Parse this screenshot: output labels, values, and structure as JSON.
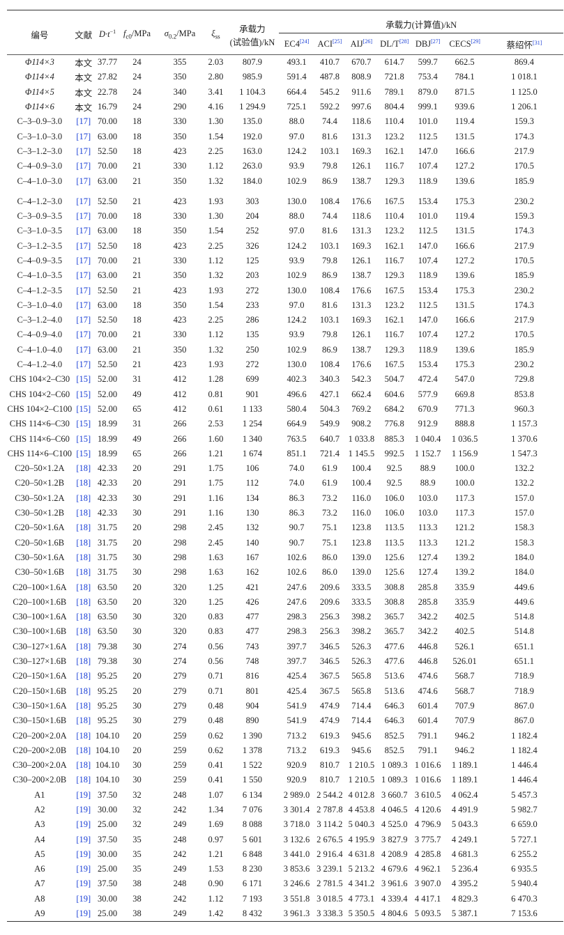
{
  "header": {
    "id": "编号",
    "source": "文献",
    "dt": "D·t",
    "dt_sup": "−1",
    "fc0": "f",
    "fc0_sub": "c0",
    "fc0_unit": "/MPa",
    "sigma": "σ",
    "sigma_sub": "0.2",
    "sigma_unit": "/MPa",
    "xi": "ξ",
    "xi_sub": "ss",
    "test_line1": "承载力",
    "test_line2": "(试验值)/kN",
    "calc_group": "承载力(计算值)/kN",
    "methods": [
      {
        "label": "EC4",
        "ref": "[24]"
      },
      {
        "label": "ACI",
        "ref": "[25]"
      },
      {
        "label": "AIJ",
        "ref": "[26]"
      },
      {
        "label": "DL/T",
        "ref": "[28]"
      },
      {
        "label": "DBJ",
        "ref": "[27]"
      },
      {
        "label": "CECS",
        "ref": "[29]"
      },
      {
        "label": "蔡绍怀",
        "ref": "[31]"
      }
    ]
  },
  "colors": {
    "ref_link": "#1a3fd6"
  },
  "rows": [
    [
      "Φ114×3",
      "本文",
      "37.77",
      "24",
      "355",
      "2.03",
      "807.9",
      "493.1",
      "410.7",
      "670.7",
      "614.7",
      "599.7",
      "662.5",
      "869.4"
    ],
    [
      "Φ114×4",
      "本文",
      "27.82",
      "24",
      "350",
      "2.80",
      "985.9",
      "591.4",
      "487.8",
      "808.9",
      "721.8",
      "753.4",
      "784.1",
      "1 018.1"
    ],
    [
      "Φ114×5",
      "本文",
      "22.78",
      "24",
      "340",
      "3.41",
      "1 104.3",
      "664.4",
      "545.2",
      "911.6",
      "789.1",
      "879.0",
      "871.5",
      "1 125.0"
    ],
    [
      "Φ114×6",
      "本文",
      "16.79",
      "24",
      "290",
      "4.16",
      "1 294.9",
      "725.1",
      "592.2",
      "997.6",
      "804.4",
      "999.1",
      "939.6",
      "1 206.1"
    ],
    [
      "C–3–0.9–3.0",
      "[17]",
      "70.00",
      "18",
      "330",
      "1.30",
      "135.0",
      "88.0",
      "74.4",
      "118.6",
      "110.4",
      "101.0",
      "119.4",
      "159.3"
    ],
    [
      "C–3–1.0–3.0",
      "[17]",
      "63.00",
      "18",
      "350",
      "1.54",
      "192.0",
      "97.0",
      "81.6",
      "131.3",
      "123.2",
      "112.5",
      "131.5",
      "174.3"
    ],
    [
      "C–3–1.2–3.0",
      "[17]",
      "52.50",
      "18",
      "423",
      "2.25",
      "163.0",
      "124.2",
      "103.1",
      "169.3",
      "162.1",
      "147.0",
      "166.6",
      "217.9"
    ],
    [
      "C–4–0.9–3.0",
      "[17]",
      "70.00",
      "21",
      "330",
      "1.12",
      "263.0",
      "93.9",
      "79.8",
      "126.1",
      "116.7",
      "107.4",
      "127.2",
      "170.5"
    ],
    [
      "C–4–1.0–3.0",
      "[17]",
      "63.00",
      "21",
      "350",
      "1.32",
      "184.0",
      "102.9",
      "86.9",
      "138.7",
      "129.3",
      "118.9",
      "139.6",
      "185.9"
    ],
    [
      "C–4–1.2–3.0",
      "[17]",
      "52.50",
      "21",
      "423",
      "1.93",
      "303",
      "130.0",
      "108.4",
      "176.6",
      "167.5",
      "153.4",
      "175.3",
      "230.2"
    ],
    [
      "C–3–0.9–3.5",
      "[17]",
      "70.00",
      "18",
      "330",
      "1.30",
      "204",
      "88.0",
      "74.4",
      "118.6",
      "110.4",
      "101.0",
      "119.4",
      "159.3"
    ],
    [
      "C–3–1.0–3.5",
      "[17]",
      "63.00",
      "18",
      "350",
      "1.54",
      "252",
      "97.0",
      "81.6",
      "131.3",
      "123.2",
      "112.5",
      "131.5",
      "174.3"
    ],
    [
      "C–3–1.2–3.5",
      "[17]",
      "52.50",
      "18",
      "423",
      "2.25",
      "326",
      "124.2",
      "103.1",
      "169.3",
      "162.1",
      "147.0",
      "166.6",
      "217.9"
    ],
    [
      "C–4–0.9–3.5",
      "[17]",
      "70.00",
      "21",
      "330",
      "1.12",
      "125",
      "93.9",
      "79.8",
      "126.1",
      "116.7",
      "107.4",
      "127.2",
      "170.5"
    ],
    [
      "C–4–1.0–3.5",
      "[17]",
      "63.00",
      "21",
      "350",
      "1.32",
      "203",
      "102.9",
      "86.9",
      "138.7",
      "129.3",
      "118.9",
      "139.6",
      "185.9"
    ],
    [
      "C–4–1.2–3.5",
      "[17]",
      "52.50",
      "21",
      "423",
      "1.93",
      "272",
      "130.0",
      "108.4",
      "176.6",
      "167.5",
      "153.4",
      "175.3",
      "230.2"
    ],
    [
      "C–3–1.0–4.0",
      "[17]",
      "63.00",
      "18",
      "350",
      "1.54",
      "233",
      "97.0",
      "81.6",
      "131.3",
      "123.2",
      "112.5",
      "131.5",
      "174.3"
    ],
    [
      "C–3–1.2–4.0",
      "[17]",
      "52.50",
      "18",
      "423",
      "2.25",
      "286",
      "124.2",
      "103.1",
      "169.3",
      "162.1",
      "147.0",
      "166.6",
      "217.9"
    ],
    [
      "C–4–0.9–4.0",
      "[17]",
      "70.00",
      "21",
      "330",
      "1.12",
      "135",
      "93.9",
      "79.8",
      "126.1",
      "116.7",
      "107.4",
      "127.2",
      "170.5"
    ],
    [
      "C–4–1.0–4.0",
      "[17]",
      "63.00",
      "21",
      "350",
      "1.32",
      "250",
      "102.9",
      "86.9",
      "138.7",
      "129.3",
      "118.9",
      "139.6",
      "185.9"
    ],
    [
      "C–4–1.2–4.0",
      "[17]",
      "52.50",
      "21",
      "423",
      "1.93",
      "272",
      "130.0",
      "108.4",
      "176.6",
      "167.5",
      "153.4",
      "175.3",
      "230.2"
    ],
    [
      "CHS 104×2–C30",
      "[15]",
      "52.00",
      "31",
      "412",
      "1.28",
      "699",
      "402.3",
      "340.3",
      "542.3",
      "504.7",
      "472.4",
      "547.0",
      "729.8"
    ],
    [
      "CHS 104×2–C60",
      "[15]",
      "52.00",
      "49",
      "412",
      "0.81",
      "901",
      "496.6",
      "427.1",
      "662.4",
      "604.6",
      "577.9",
      "669.8",
      "853.8"
    ],
    [
      "CHS 104×2–C100",
      "[15]",
      "52.00",
      "65",
      "412",
      "0.61",
      "1 133",
      "580.4",
      "504.3",
      "769.2",
      "684.2",
      "670.9",
      "771.3",
      "960.3"
    ],
    [
      "CHS 114×6–C30",
      "[15]",
      "18.99",
      "31",
      "266",
      "2.53",
      "1 254",
      "664.9",
      "549.9",
      "908.2",
      "776.8",
      "912.9",
      "888.8",
      "1 157.3"
    ],
    [
      "CHS 114×6–C60",
      "[15]",
      "18.99",
      "49",
      "266",
      "1.60",
      "1 340",
      "763.5",
      "640.7",
      "1 033.8",
      "885.3",
      "1 040.4",
      "1 036.5",
      "1 370.6"
    ],
    [
      "CHS 114×6–C100",
      "[15]",
      "18.99",
      "65",
      "266",
      "1.21",
      "1 674",
      "851.1",
      "721.4",
      "1 145.5",
      "992.5",
      "1 152.7",
      "1 156.9",
      "1 547.3"
    ],
    [
      "C20–50×1.2A",
      "[18]",
      "42.33",
      "20",
      "291",
      "1.75",
      "106",
      "74.0",
      "61.9",
      "100.4",
      "92.5",
      "88.9",
      "100.0",
      "132.2"
    ],
    [
      "C20–50×1.2B",
      "[18]",
      "42.33",
      "20",
      "291",
      "1.75",
      "112",
      "74.0",
      "61.9",
      "100.4",
      "92.5",
      "88.9",
      "100.0",
      "132.2"
    ],
    [
      "C30–50×1.2A",
      "[18]",
      "42.33",
      "30",
      "291",
      "1.16",
      "134",
      "86.3",
      "73.2",
      "116.0",
      "106.0",
      "103.0",
      "117.3",
      "157.0"
    ],
    [
      "C30–50×1.2B",
      "[18]",
      "42.33",
      "30",
      "291",
      "1.16",
      "130",
      "86.3",
      "73.2",
      "116.0",
      "106.0",
      "103.0",
      "117.3",
      "157.0"
    ],
    [
      "C20–50×1.6A",
      "[18]",
      "31.75",
      "20",
      "298",
      "2.45",
      "132",
      "90.7",
      "75.1",
      "123.8",
      "113.5",
      "113.3",
      "121.2",
      "158.3"
    ],
    [
      "C20–50×1.6B",
      "[18]",
      "31.75",
      "20",
      "298",
      "2.45",
      "140",
      "90.7",
      "75.1",
      "123.8",
      "113.5",
      "113.3",
      "121.2",
      "158.3"
    ],
    [
      "C30–50×1.6A",
      "[18]",
      "31.75",
      "30",
      "298",
      "1.63",
      "167",
      "102.6",
      "86.0",
      "139.0",
      "125.6",
      "127.4",
      "139.2",
      "184.0"
    ],
    [
      "C30–50×1.6B",
      "[18]",
      "31.75",
      "30",
      "298",
      "1.63",
      "162",
      "102.6",
      "86.0",
      "139.0",
      "125.6",
      "127.4",
      "139.2",
      "184.0"
    ],
    [
      "C20–100×1.6A",
      "[18]",
      "63.50",
      "20",
      "320",
      "1.25",
      "421",
      "247.6",
      "209.6",
      "333.5",
      "308.8",
      "285.8",
      "335.9",
      "449.6"
    ],
    [
      "C20–100×1.6B",
      "[18]",
      "63.50",
      "20",
      "320",
      "1.25",
      "426",
      "247.6",
      "209.6",
      "333.5",
      "308.8",
      "285.8",
      "335.9",
      "449.6"
    ],
    [
      "C30–100×1.6A",
      "[18]",
      "63.50",
      "30",
      "320",
      "0.83",
      "477",
      "298.3",
      "256.3",
      "398.2",
      "365.7",
      "342.2",
      "402.5",
      "514.8"
    ],
    [
      "C30–100×1.6B",
      "[18]",
      "63.50",
      "30",
      "320",
      "0.83",
      "477",
      "298.3",
      "256.3",
      "398.2",
      "365.7",
      "342.2",
      "402.5",
      "514.8"
    ],
    [
      "C30–127×1.6A",
      "[18]",
      "79.38",
      "30",
      "274",
      "0.56",
      "743",
      "397.7",
      "346.5",
      "526.3",
      "477.6",
      "446.8",
      "526.1",
      "651.1"
    ],
    [
      "C30–127×1.6B",
      "[18]",
      "79.38",
      "30",
      "274",
      "0.56",
      "748",
      "397.7",
      "346.5",
      "526.3",
      "477.6",
      "446.8",
      "526.01",
      "651.1"
    ],
    [
      "C20–150×1.6A",
      "[18]",
      "95.25",
      "20",
      "279",
      "0.71",
      "816",
      "425.4",
      "367.5",
      "565.8",
      "513.6",
      "474.6",
      "568.7",
      "718.9"
    ],
    [
      "C20–150×1.6B",
      "[18]",
      "95.25",
      "20",
      "279",
      "0.71",
      "801",
      "425.4",
      "367.5",
      "565.8",
      "513.6",
      "474.6",
      "568.7",
      "718.9"
    ],
    [
      "C30–150×1.6A",
      "[18]",
      "95.25",
      "30",
      "279",
      "0.48",
      "904",
      "541.9",
      "474.9",
      "714.4",
      "646.3",
      "601.4",
      "707.9",
      "867.0"
    ],
    [
      "C30–150×1.6B",
      "[18]",
      "95.25",
      "30",
      "279",
      "0.48",
      "890",
      "541.9",
      "474.9",
      "714.4",
      "646.3",
      "601.4",
      "707.9",
      "867.0"
    ],
    [
      "C20–200×2.0A",
      "[18]",
      "104.10",
      "20",
      "259",
      "0.62",
      "1 390",
      "713.2",
      "619.3",
      "945.6",
      "852.5",
      "791.1",
      "946.2",
      "1 182.4"
    ],
    [
      "C20–200×2.0B",
      "[18]",
      "104.10",
      "20",
      "259",
      "0.62",
      "1 378",
      "713.2",
      "619.3",
      "945.6",
      "852.5",
      "791.1",
      "946.2",
      "1 182.4"
    ],
    [
      "C30–200×2.0A",
      "[18]",
      "104.10",
      "30",
      "259",
      "0.41",
      "1 522",
      "920.9",
      "810.7",
      "1 210.5",
      "1 089.3",
      "1 016.6",
      "1 189.1",
      "1 446.4"
    ],
    [
      "C30–200×2.0B",
      "[18]",
      "104.10",
      "30",
      "259",
      "0.41",
      "1 550",
      "920.9",
      "810.7",
      "1 210.5",
      "1 089.3",
      "1 016.6",
      "1 189.1",
      "1 446.4"
    ],
    [
      "A1",
      "[19]",
      "37.50",
      "32",
      "248",
      "1.07",
      "6 134",
      "2 989.0",
      "2 544.2",
      "4 012.8",
      "3 660.7",
      "3 610.5",
      "4 062.4",
      "5 457.3"
    ],
    [
      "A2",
      "[19]",
      "30.00",
      "32",
      "242",
      "1.34",
      "7 076",
      "3 301.4",
      "2 787.8",
      "4 453.8",
      "4 046.5",
      "4 120.6",
      "4 491.9",
      "5 982.7"
    ],
    [
      "A3",
      "[19]",
      "25.00",
      "32",
      "249",
      "1.69",
      "8 088",
      "3 718.0",
      "3 114.2",
      "5 040.3",
      "4 525.0",
      "4 796.9",
      "5 043.3",
      "6 659.0"
    ],
    [
      "A4",
      "[19]",
      "37.50",
      "35",
      "248",
      "0.97",
      "5 601",
      "3 132.6",
      "2 676.5",
      "4 195.9",
      "3 827.9",
      "3 775.7",
      "4 249.1",
      "5 727.1"
    ],
    [
      "A5",
      "[19]",
      "30.00",
      "35",
      "242",
      "1.21",
      "6 848",
      "3 441.0",
      "2 916.4",
      "4 631.8",
      "4 208.9",
      "4 285.8",
      "4 681.3",
      "6 255.2"
    ],
    [
      "A6",
      "[19]",
      "25.00",
      "35",
      "249",
      "1.53",
      "8 230",
      "3 853.6",
      "3 239.1",
      "5 213.2",
      "4 679.6",
      "4 962.1",
      "5 236.4",
      "6 935.5"
    ],
    [
      "A7",
      "[19]",
      "37.50",
      "38",
      "248",
      "0.90",
      "6 171",
      "3 246.6",
      "2 781.5",
      "4 341.2",
      "3 961.6",
      "3 907.0",
      "4 395.2",
      "5 940.4"
    ],
    [
      "A8",
      "[19]",
      "30.00",
      "38",
      "242",
      "1.12",
      "7 193",
      "3 551.8",
      "3 018.5",
      "4 773.1",
      "4 339.4",
      "4 417.1",
      "4 829.3",
      "6 470.3"
    ],
    [
      "A9",
      "[19]",
      "25.00",
      "38",
      "249",
      "1.42",
      "8 432",
      "3 961.3",
      "3 338.3",
      "5 350.5",
      "4 804.6",
      "5 093.5",
      "5 387.1",
      "7 153.6"
    ]
  ]
}
